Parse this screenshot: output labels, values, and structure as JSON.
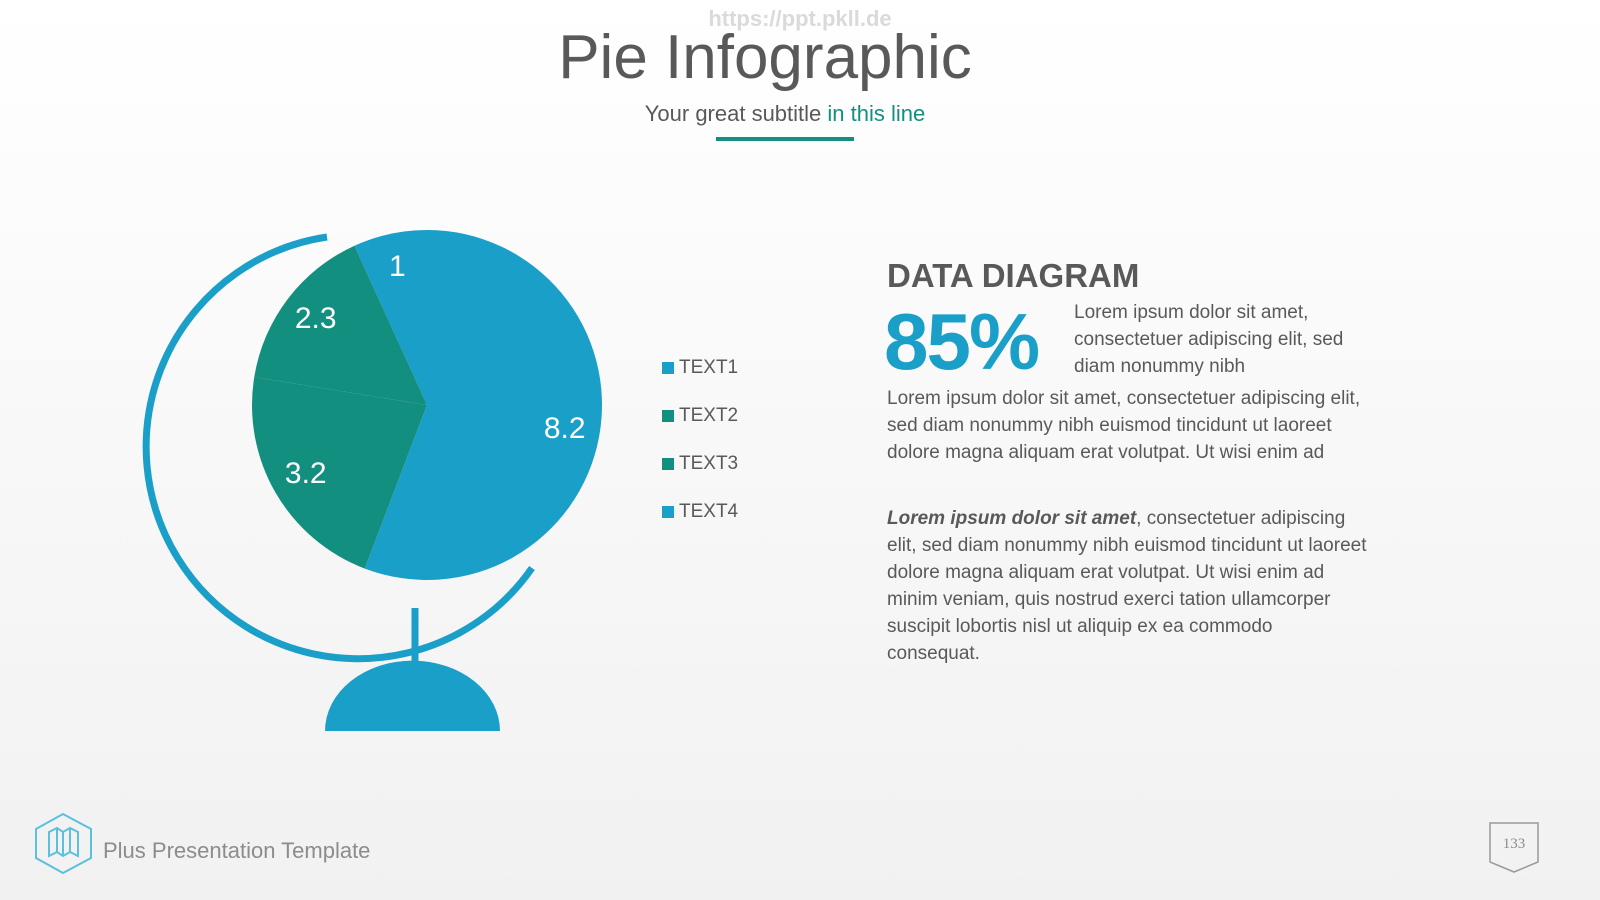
{
  "header": {
    "watermark": "https://ppt.pkll.de",
    "title": "Pie Infographic",
    "subtitle": "Your great subtitle ",
    "subtitle_highlight": "in this line"
  },
  "chart_data": {
    "type": "pie",
    "categories": [
      "TEXT1",
      "TEXT2",
      "TEXT3",
      "TEXT4"
    ],
    "values": [
      1,
      2.3,
      3.2,
      8.2
    ],
    "colors": [
      "#1a9fc9",
      "#138f7f",
      "#138f7f",
      "#1a9fc9"
    ]
  },
  "text_panel": {
    "heading": "DATA DIAGRAM",
    "big_number": "85%",
    "intro": "Lorem ipsum dolor sit amet, consectetuer adipiscing elit, sed diam nonummy nibh",
    "paragraph1": "Lorem ipsum dolor sit amet, consectetuer adipiscing elit, sed diam nonummy nibh euismod tincidunt ut laoreet dolore magna aliquam erat volutpat. Ut wisi enim ad",
    "paragraph2_emphasis": "Lorem ipsum dolor sit amet",
    "paragraph2": ", consectetuer adipiscing elit, sed diam nonummy nibh euismod tincidunt ut laoreet dolore magna aliquam erat volutpat. Ut wisi enim ad minim veniam, quis nostrud exerci tation ullamcorper suscipit lobortis nisl ut aliquip ex ea commodo consequat."
  },
  "footer": {
    "text": "Plus Presentation Template",
    "page_number": "133"
  }
}
